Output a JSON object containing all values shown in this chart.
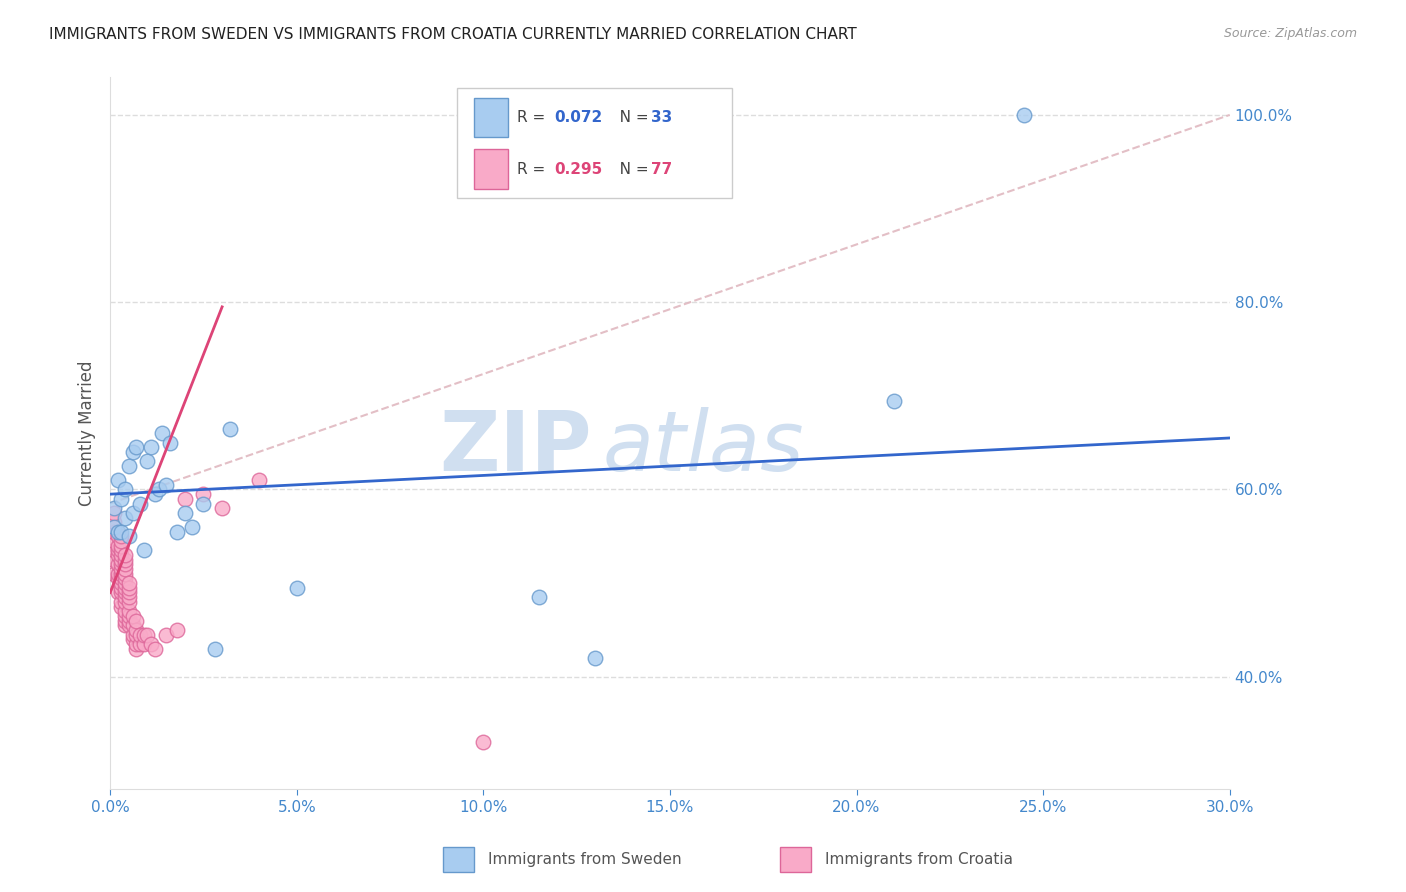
{
  "title": "IMMIGRANTS FROM SWEDEN VS IMMIGRANTS FROM CROATIA CURRENTLY MARRIED CORRELATION CHART",
  "source": "Source: ZipAtlas.com",
  "ylabel": "Currently Married",
  "xlim": [
    0.0,
    0.3
  ],
  "ylim": [
    0.28,
    1.04
  ],
  "xticks": [
    0.0,
    0.05,
    0.1,
    0.15,
    0.2,
    0.25,
    0.3
  ],
  "xticklabels": [
    "0.0%",
    "5.0%",
    "10.0%",
    "15.0%",
    "20.0%",
    "25.0%",
    "30.0%"
  ],
  "yticks": [
    0.4,
    0.6,
    0.8,
    1.0
  ],
  "yticklabels": [
    "40.0%",
    "60.0%",
    "80.0%",
    "100.0%"
  ],
  "sweden_color": "#a8ccf0",
  "croatia_color": "#f9aac8",
  "sweden_edge": "#6699cc",
  "croatia_edge": "#dd6699",
  "sweden_R": 0.072,
  "sweden_N": 33,
  "croatia_R": 0.295,
  "croatia_N": 77,
  "sweden_line_color": "#3366cc",
  "croatia_line_color": "#dd4477",
  "ref_line_color": "#e0b8c0",
  "watermark": "ZIPatlas",
  "watermark_color": "#d0dff0",
  "background_color": "#ffffff",
  "grid_color": "#dddddd",
  "title_color": "#222222",
  "axis_color": "#4488cc",
  "sweden_x": [
    0.001,
    0.001,
    0.002,
    0.002,
    0.003,
    0.003,
    0.004,
    0.004,
    0.005,
    0.005,
    0.006,
    0.006,
    0.007,
    0.008,
    0.009,
    0.01,
    0.011,
    0.012,
    0.013,
    0.014,
    0.015,
    0.016,
    0.018,
    0.02,
    0.022,
    0.025,
    0.028,
    0.032,
    0.05,
    0.115,
    0.13,
    0.21,
    0.245
  ],
  "sweden_y": [
    0.56,
    0.58,
    0.555,
    0.61,
    0.555,
    0.59,
    0.57,
    0.6,
    0.55,
    0.625,
    0.575,
    0.64,
    0.645,
    0.585,
    0.535,
    0.63,
    0.645,
    0.595,
    0.6,
    0.66,
    0.605,
    0.65,
    0.555,
    0.575,
    0.56,
    0.585,
    0.43,
    0.665,
    0.495,
    0.485,
    0.42,
    0.695,
    1.0
  ],
  "croatia_x": [
    0.001,
    0.001,
    0.001,
    0.001,
    0.001,
    0.001,
    0.001,
    0.002,
    0.002,
    0.002,
    0.002,
    0.002,
    0.002,
    0.002,
    0.002,
    0.003,
    0.003,
    0.003,
    0.003,
    0.003,
    0.003,
    0.003,
    0.003,
    0.003,
    0.003,
    0.003,
    0.003,
    0.003,
    0.003,
    0.003,
    0.004,
    0.004,
    0.004,
    0.004,
    0.004,
    0.004,
    0.004,
    0.004,
    0.004,
    0.004,
    0.004,
    0.004,
    0.004,
    0.004,
    0.004,
    0.005,
    0.005,
    0.005,
    0.005,
    0.005,
    0.005,
    0.005,
    0.005,
    0.005,
    0.006,
    0.006,
    0.006,
    0.006,
    0.007,
    0.007,
    0.007,
    0.007,
    0.007,
    0.008,
    0.008,
    0.009,
    0.009,
    0.01,
    0.011,
    0.012,
    0.015,
    0.018,
    0.02,
    0.025,
    0.03,
    0.04,
    0.1
  ],
  "croatia_y": [
    0.51,
    0.525,
    0.535,
    0.545,
    0.555,
    0.565,
    0.575,
    0.49,
    0.505,
    0.51,
    0.52,
    0.53,
    0.535,
    0.54,
    0.55,
    0.475,
    0.48,
    0.49,
    0.495,
    0.5,
    0.505,
    0.51,
    0.515,
    0.52,
    0.525,
    0.53,
    0.535,
    0.54,
    0.545,
    0.55,
    0.455,
    0.46,
    0.465,
    0.47,
    0.48,
    0.485,
    0.49,
    0.495,
    0.5,
    0.505,
    0.51,
    0.515,
    0.52,
    0.525,
    0.53,
    0.455,
    0.46,
    0.465,
    0.47,
    0.48,
    0.485,
    0.49,
    0.495,
    0.5,
    0.44,
    0.445,
    0.455,
    0.465,
    0.43,
    0.435,
    0.445,
    0.45,
    0.46,
    0.435,
    0.445,
    0.435,
    0.445,
    0.445,
    0.435,
    0.43,
    0.445,
    0.45,
    0.59,
    0.595,
    0.58,
    0.61,
    0.33
  ],
  "sweden_line_x": [
    0.0,
    0.3
  ],
  "sweden_line_y": [
    0.595,
    0.655
  ],
  "croatia_line_x": [
    0.0,
    0.03
  ],
  "croatia_line_y": [
    0.49,
    0.795
  ],
  "ref_line_x": [
    0.0,
    0.3
  ],
  "ref_line_y": [
    0.585,
    1.0
  ]
}
